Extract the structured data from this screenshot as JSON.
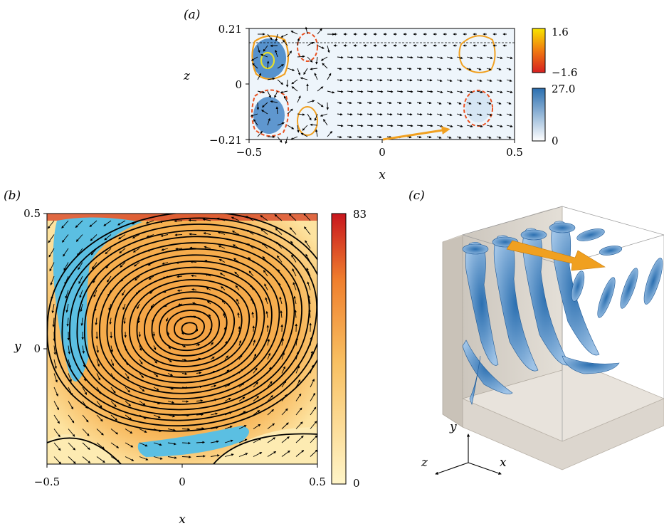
{
  "panels": {
    "a": {
      "label": "(a)",
      "xlabel": "x",
      "ylabel": "z",
      "xticks": [
        "−0.5",
        "0",
        "0.5"
      ],
      "yticks": [
        "0.21",
        "0",
        "−0.21"
      ],
      "colorbar_top": {
        "max": "1.6",
        "min": "−1.6"
      },
      "colorbar_bottom": {
        "max": "27.0",
        "min": "0"
      }
    },
    "b": {
      "label": "(b)",
      "xlabel": "x",
      "ylabel": "y",
      "xticks": [
        "−0.5",
        "0",
        "0.5"
      ],
      "yticks": [
        "0.5",
        "0"
      ],
      "colorbar": {
        "max": "83",
        "min": "0"
      }
    },
    "c": {
      "label": "(c)",
      "axes": {
        "y": "y",
        "z": "z",
        "x": "x"
      }
    }
  },
  "chart_data": [
    {
      "type": "heatmap",
      "panel": "a",
      "xlabel": "x",
      "ylabel": "z",
      "xlim": [
        -0.5,
        0.5
      ],
      "ylim": [
        -0.21,
        0.21
      ],
      "colorbars": [
        {
          "range": [
            -1.6,
            1.6
          ],
          "colors": [
            "#d62020",
            "#f7d000"
          ]
        },
        {
          "range": [
            0,
            27.0
          ],
          "colors": [
            "#ffffff",
            "#2b6fb0"
          ]
        }
      ]
    },
    {
      "type": "heatmap",
      "panel": "b",
      "xlabel": "x",
      "ylabel": "y",
      "xlim": [
        -0.5,
        0.5
      ],
      "ylim": [
        -0.5,
        0.5
      ],
      "colorbar": {
        "range": [
          0,
          83
        ],
        "colors": [
          "#fff5c8",
          "#f59a3a",
          "#c8161e"
        ]
      }
    }
  ],
  "colors": {
    "arrow_accent": "#f0a020",
    "vortex_blue": "#3b80c4",
    "wall_gray": "#d9d4cd",
    "cyan_region": "#5bbfe2"
  }
}
